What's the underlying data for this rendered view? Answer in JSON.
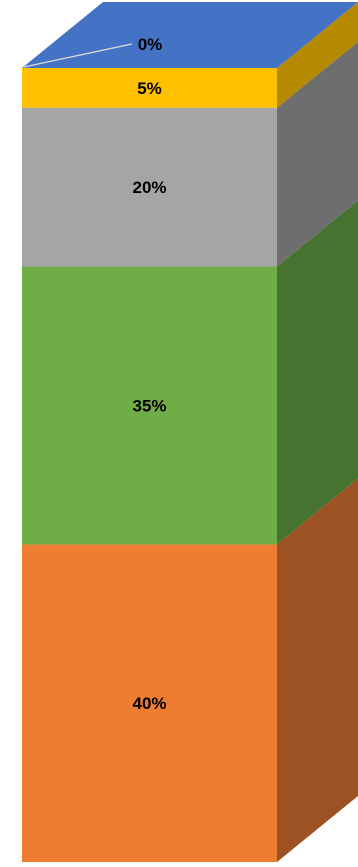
{
  "chart_data": {
    "type": "bar",
    "subtype": "stacked-100-percent-3d",
    "title": "",
    "xlabel": "",
    "ylabel": "",
    "ylim": [
      0,
      100
    ],
    "legend": "none",
    "grid": false,
    "series": [
      {
        "value": 40,
        "label": "40%",
        "color": "#ED7D31",
        "side_color": "#9C5222"
      },
      {
        "value": 35,
        "label": "35%",
        "color": "#70AD47",
        "side_color": "#46732F"
      },
      {
        "value": 20,
        "label": "20%",
        "color": "#A5A5A5",
        "side_color": "#6E6E6E"
      },
      {
        "value": 5,
        "label": "5%",
        "color": "#FFC000",
        "side_color": "#B58900"
      },
      {
        "value": 0,
        "label": "0%",
        "color": "#4472C4",
        "side_color": "#2F5597"
      }
    ]
  }
}
